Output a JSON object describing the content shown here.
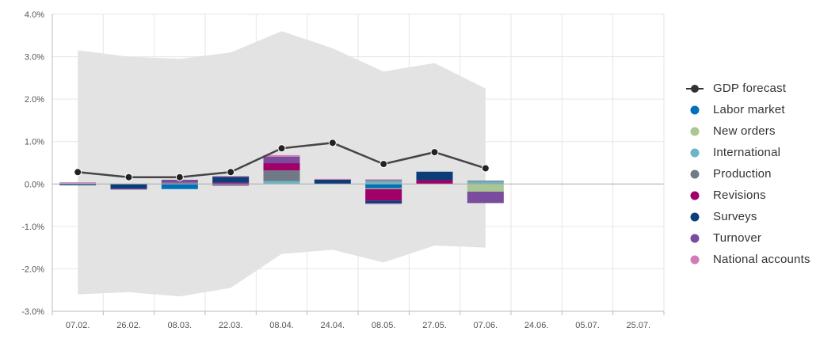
{
  "chart_data": {
    "type": "bar",
    "subtype": "stacked-bar-with-line-and-band",
    "title": "",
    "xlabel": "",
    "ylabel": "",
    "ylim": [
      -3.0,
      4.0
    ],
    "yticks": [
      -3.0,
      -2.0,
      -1.0,
      0.0,
      1.0,
      2.0,
      3.0,
      4.0
    ],
    "ytick_labels": [
      "-3.0%",
      "-2.0%",
      "-1.0%",
      "0.0%",
      "1.0%",
      "2.0%",
      "3.0%",
      "4.0%"
    ],
    "grid": true,
    "legend_position": "right",
    "categories": [
      "07.02.",
      "26.02.",
      "08.03.",
      "22.03.",
      "08.04.",
      "24.04.",
      "08.05.",
      "27.05.",
      "07.06.",
      "24.06.",
      "05.07.",
      "25.07."
    ],
    "line": {
      "name": "GDP forecast",
      "color": "#333333",
      "values": [
        0.28,
        0.16,
        0.16,
        0.28,
        0.84,
        0.97,
        0.47,
        0.75,
        0.37,
        null,
        null,
        null
      ]
    },
    "band": {
      "upper": [
        3.15,
        3.0,
        2.95,
        3.1,
        3.6,
        3.2,
        2.65,
        2.85,
        2.25,
        null,
        null,
        null
      ],
      "lower": [
        -2.6,
        -2.55,
        -2.65,
        -2.45,
        -1.65,
        -1.55,
        -1.85,
        -1.45,
        -1.5,
        null,
        null,
        null
      ]
    },
    "series": [
      {
        "name": "Labor market",
        "color": "#0070b8",
        "values": [
          0,
          0,
          -0.12,
          0,
          0,
          0,
          -0.1,
          0,
          0,
          null,
          null,
          null
        ]
      },
      {
        "name": "New orders",
        "color": "#a8c792",
        "values": [
          0,
          0,
          0,
          0,
          0,
          0,
          -0.02,
          0,
          -0.18,
          null,
          null,
          null
        ]
      },
      {
        "name": "International",
        "color": "#6ab6c4",
        "values": [
          0.02,
          0,
          0,
          0,
          0.07,
          0,
          0.07,
          0,
          0.06,
          null,
          null,
          null
        ]
      },
      {
        "name": "Production",
        "color": "#707a87",
        "values": [
          0,
          0,
          0.03,
          0,
          0.25,
          0,
          0.03,
          0,
          0.02,
          null,
          null,
          null
        ]
      },
      {
        "name": "Revisions",
        "color": "#a10069",
        "values": [
          0,
          0,
          0,
          0.03,
          0.17,
          0,
          -0.27,
          0.09,
          0,
          null,
          null,
          null
        ]
      },
      {
        "name": "Surveys",
        "color": "#0d3d78",
        "values": [
          -0.03,
          -0.12,
          0,
          0.14,
          0,
          0.1,
          -0.06,
          0.2,
          0,
          null,
          null,
          null
        ]
      },
      {
        "name": "Turnover",
        "color": "#7a4c9e",
        "values": [
          0,
          0,
          0.07,
          -0.04,
          0.15,
          0,
          -0.02,
          0,
          -0.27,
          null,
          null,
          null
        ]
      },
      {
        "name": "National accounts",
        "color": "#d27bb6",
        "values": [
          0.02,
          -0.01,
          0,
          0.02,
          0.04,
          0.02,
          0.01,
          0,
          0,
          null,
          null,
          null
        ]
      }
    ]
  },
  "legend": {
    "items": [
      {
        "label": "GDP forecast",
        "color": "#333333",
        "kind": "line"
      },
      {
        "label": "Labor market",
        "color": "#0070b8",
        "kind": "dot"
      },
      {
        "label": "New orders",
        "color": "#a8c792",
        "kind": "dot"
      },
      {
        "label": "International",
        "color": "#6ab6c4",
        "kind": "dot"
      },
      {
        "label": "Production",
        "color": "#707a87",
        "kind": "dot"
      },
      {
        "label": "Revisions",
        "color": "#a10069",
        "kind": "dot"
      },
      {
        "label": "Surveys",
        "color": "#0d3d78",
        "kind": "dot"
      },
      {
        "label": "Turnover",
        "color": "#7a4c9e",
        "kind": "dot"
      },
      {
        "label": "National accounts",
        "color": "#d27bb6",
        "kind": "dot"
      }
    ]
  },
  "colors": {
    "band": "#e3e3e3",
    "grid": "#e6e6e6",
    "axis": "#bbbbbb",
    "zero_line": "#aaaaaa"
  }
}
